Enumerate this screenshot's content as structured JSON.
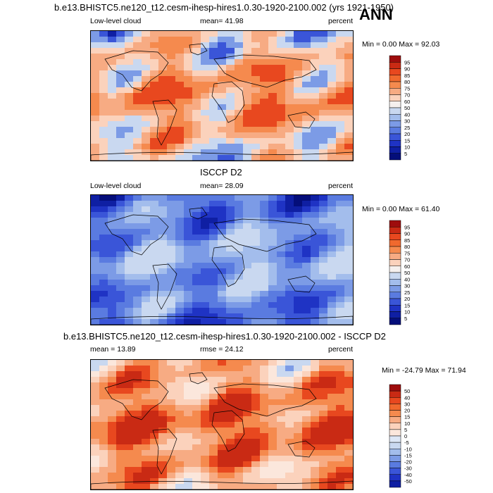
{
  "page": {
    "season": "ANN",
    "panels": [
      {
        "title": "b.e13.BHISTC5.ne120_t12.cesm-ihesp-hires1.0.30-1920-2100.002 (yrs 1921-1950)",
        "variable": "Low-level cloud",
        "mean_text": "mean=  41.98",
        "units": "percent",
        "minmax_text": "Min =   0.00 Max =  92.03",
        "colorbar_levels": [
          "95",
          "90",
          "85",
          "80",
          "75",
          "70",
          "60",
          "50",
          "40",
          "30",
          "25",
          "20",
          "15",
          "10",
          "5"
        ],
        "colorbar_colors": [
          "#9e0d0d",
          "#c92a14",
          "#e8481f",
          "#f0692e",
          "#f58a4e",
          "#f7ab83",
          "#fbd2bc",
          "#f5f0ee",
          "#c9d8f0",
          "#a3bdec",
          "#7c9be6",
          "#5a7be0",
          "#3a55d8",
          "#1f33c4",
          "#0f1fa3",
          "#040e7a"
        ],
        "map_palette": [
          "#e8481f",
          "#f58a4e",
          "#f7ab83",
          "#fbd2bc",
          "#c9d8f0",
          "#7c9be6",
          "#3a55d8",
          "#0f1fa3"
        ]
      },
      {
        "title": "ISCCP D2",
        "variable": "Low-level cloud",
        "mean_text": "mean=  28.09",
        "units": "percent",
        "minmax_text": "Min =   0.00 Max =  61.40",
        "colorbar_levels": [
          "95",
          "90",
          "85",
          "80",
          "75",
          "70",
          "60",
          "50",
          "40",
          "30",
          "25",
          "20",
          "15",
          "10",
          "5"
        ],
        "colorbar_colors": [
          "#9e0d0d",
          "#c92a14",
          "#e8481f",
          "#f0692e",
          "#f58a4e",
          "#f7ab83",
          "#fbd2bc",
          "#f5f0ee",
          "#c9d8f0",
          "#a3bdec",
          "#7c9be6",
          "#5a7be0",
          "#3a55d8",
          "#1f33c4",
          "#0f1fa3",
          "#040e7a"
        ],
        "map_palette": [
          "#c9d8f0",
          "#a3bdec",
          "#7c9be6",
          "#5a7be0",
          "#3a55d8",
          "#1f33c4",
          "#0f1fa3",
          "#040e7a"
        ]
      },
      {
        "title": "b.e13.BHISTC5.ne120_t12.cesm-ihesp-hires1.0.30-1920-2100.002 - ISCCP D2",
        "mean_text": "mean =  13.89",
        "rmse_text": "rmse =  24.12",
        "units": "percent",
        "minmax_text": "Min = -24.79 Max =  71.94",
        "colorbar_levels": [
          "50",
          "40",
          "30",
          "20",
          "15",
          "10",
          "5",
          "0",
          "-5",
          "-10",
          "-15",
          "-20",
          "-30",
          "-40",
          "-50"
        ],
        "colorbar_colors": [
          "#9e0d0d",
          "#c92a14",
          "#e8481f",
          "#f0692e",
          "#f58a4e",
          "#f7ab83",
          "#fbd2bc",
          "#fbe7dc",
          "#dde7f6",
          "#c9d8f0",
          "#a3bdec",
          "#7c9be6",
          "#5a7be0",
          "#3a55d8",
          "#1f33c4",
          "#0f1fa3"
        ],
        "map_palette": [
          "#c92a14",
          "#e8481f",
          "#f58a4e",
          "#f7ab83",
          "#fbd2bc",
          "#fbe7dc",
          "#c9d8f0",
          "#7c9be6"
        ]
      }
    ]
  }
}
